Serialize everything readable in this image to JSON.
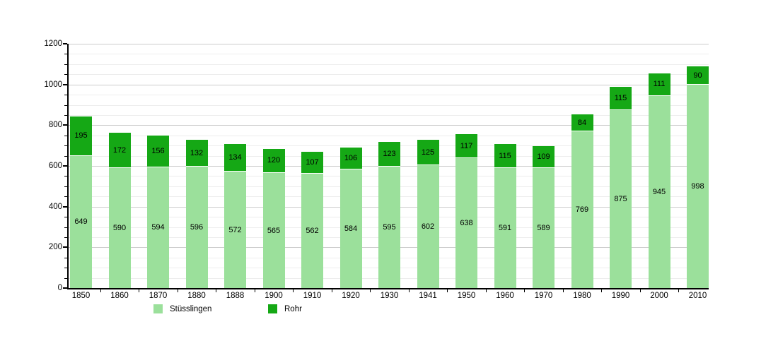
{
  "page": {
    "background": "#ffffff"
  },
  "chart_data": {
    "type": "bar",
    "stacked": true,
    "title": "",
    "xlabel": "",
    "ylabel": "",
    "categories": [
      "1850",
      "1860",
      "1870",
      "1880",
      "1888",
      "1900",
      "1910",
      "1920",
      "1930",
      "1941",
      "1950",
      "1960",
      "1970",
      "1980",
      "1990",
      "2000",
      "2010"
    ],
    "series": [
      {
        "name": "Stüsslingen",
        "color": "#9be09b",
        "values": [
          649,
          590,
          594,
          596,
          572,
          565,
          562,
          584,
          595,
          602,
          638,
          591,
          589,
          769,
          875,
          945,
          998
        ]
      },
      {
        "name": "Rohr",
        "color": "#15a815",
        "values": [
          195,
          172,
          156,
          132,
          134,
          120,
          107,
          106,
          123,
          125,
          117,
          115,
          109,
          84,
          115,
          111,
          90
        ]
      }
    ],
    "totals": [
      844,
      762,
      750,
      728,
      706,
      685,
      669,
      690,
      718,
      727,
      755,
      706,
      698,
      853,
      990,
      1056,
      1088
    ],
    "ylim": [
      0,
      1200
    ],
    "ytick_labels": [
      "0",
      "200",
      "400",
      "600",
      "800",
      "1000",
      "1200"
    ],
    "major_tick_interval": 200,
    "minor_tick_interval": 50,
    "grid": true,
    "major_grid_color": "#cccccc",
    "minor_grid_color": "#ededed",
    "axis_color": "#000000",
    "value_label_color": "#000000",
    "legend_position": "bottom"
  }
}
